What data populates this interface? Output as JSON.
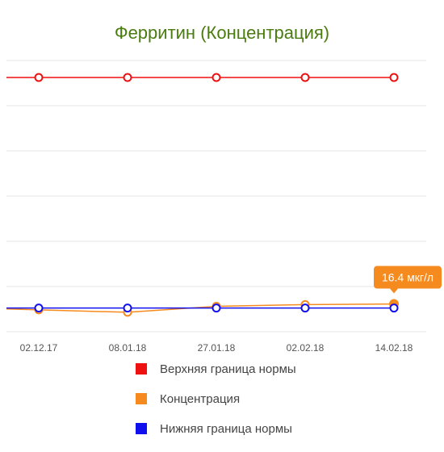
{
  "colors": {
    "title": "#4a7c10",
    "upper": "#ee1111",
    "concentration": "#f58a1f",
    "lower": "#1010ee",
    "grid": "#e6e6e6",
    "tick": "#555555",
    "callout_bg": "#f58a1f",
    "callout_text": "#ffffff"
  },
  "chart_data": {
    "type": "line",
    "title": "Ферритин (Концентрация)",
    "xlabel": "",
    "ylabel": "",
    "ylim": [
      0,
      160
    ],
    "grid": true,
    "legend_position": "bottom",
    "categories": [
      "02.12.17",
      "08.01.18",
      "27.01.18",
      "02.02.18",
      "14.02.18"
    ],
    "series": [
      {
        "name": "Верхняя граница нормы",
        "key": "upper",
        "values": [
          150,
          150,
          150,
          150,
          150
        ]
      },
      {
        "name": "Концентрация",
        "key": "concentration",
        "values": [
          12.9,
          11.5,
          15.0,
          16.0,
          16.4
        ]
      },
      {
        "name": "Нижняя граница нормы",
        "key": "lower",
        "values": [
          14.0,
          14.0,
          14.0,
          14.0,
          14.0
        ]
      }
    ],
    "annotations": [
      {
        "series": "concentration",
        "index": 4,
        "text": "16.4 мкг/л"
      }
    ]
  }
}
